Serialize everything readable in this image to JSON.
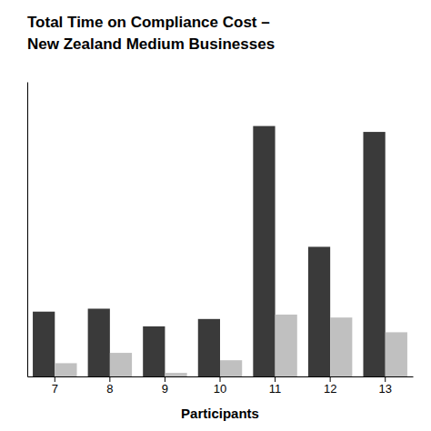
{
  "chart_data": {
    "type": "bar",
    "title": "Total Time on Compliance Cost –",
    "subtitle": "New Zealand Medium Businesses",
    "xlabel": "Participants",
    "categories": [
      "7",
      "8",
      "9",
      "10",
      "11",
      "12",
      "13"
    ],
    "series": [
      {
        "color": "#3a3a3a",
        "values": [
          2.2,
          2.3,
          1.7,
          1.95,
          8.5,
          4.4,
          8.3
        ]
      },
      {
        "color": "#c0c0c0",
        "values": [
          0.45,
          0.8,
          0.12,
          0.55,
          2.1,
          2.0,
          1.5
        ]
      }
    ],
    "ylim": [
      0,
      10
    ],
    "yticks": [],
    "grid": false,
    "tick_labels": "x"
  }
}
